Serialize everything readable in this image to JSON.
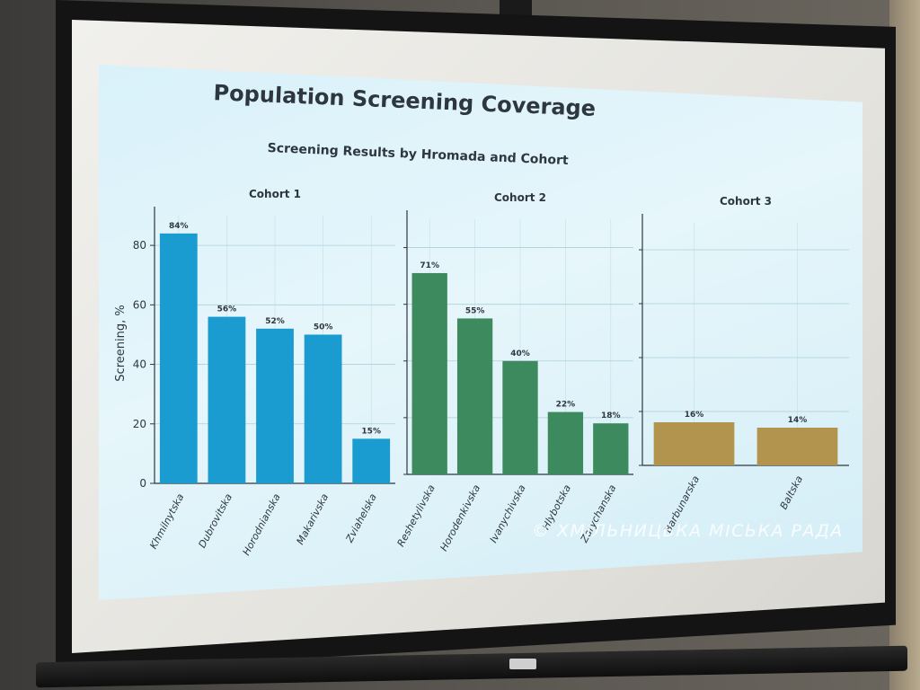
{
  "slide": {
    "title": "Population Screening Coverage"
  },
  "watermark": "© ХМІЛЬНИЦЬКА МІСЬКА РАДА",
  "colors": {
    "cohort1": "#1b9cd0",
    "cohort2": "#3d8a5f",
    "cohort3": "#b3944f",
    "projection_bg": "#dff3fa"
  },
  "chart_data": {
    "type": "bar",
    "title": "Screening Results by Hromada and Cohort",
    "ylabel": "Screening, %",
    "ylim": [
      0,
      90
    ],
    "yticks": [
      0,
      20,
      40,
      60,
      80
    ],
    "grid": true,
    "panels": [
      {
        "name": "Cohort 1",
        "color_key": "cohort1",
        "categories": [
          "Khmilnytska",
          "Dubrovitska",
          "Horodnianska",
          "Makarivska",
          "Zviahelska"
        ],
        "values": [
          84,
          56,
          52,
          50,
          15
        ],
        "labels": [
          "84%",
          "56%",
          "52%",
          "50%",
          "15%"
        ]
      },
      {
        "name": "Cohort 2",
        "color_key": "cohort2",
        "categories": [
          "Reshetylivska",
          "Horodenkivska",
          "Ivanychivska",
          "Hlybotska",
          "Zarychanska"
        ],
        "values": [
          71,
          55,
          40,
          22,
          18
        ],
        "labels": [
          "71%",
          "55%",
          "40%",
          "22%",
          "18%"
        ]
      },
      {
        "name": "Cohort 3",
        "color_key": "cohort3",
        "categories": [
          "Barbunarska",
          "Baltska"
        ],
        "values": [
          16,
          14
        ],
        "labels": [
          "16%",
          "14%"
        ]
      }
    ]
  }
}
